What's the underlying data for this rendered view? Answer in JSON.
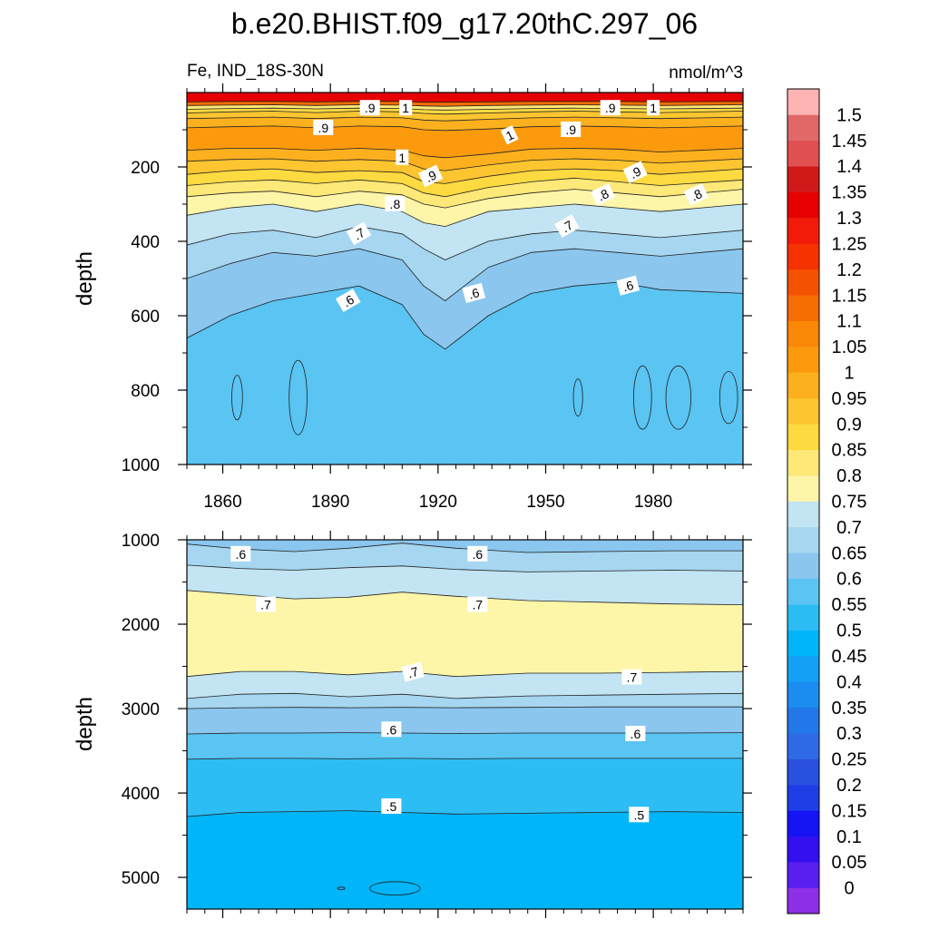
{
  "chart_data": [
    {
      "type": "contour",
      "panel": "upper",
      "title": "b.e20.BHIST.f09_g17.20thC.297_06",
      "left_subtitle": "Fe, IND_18S-30N",
      "right_subtitle": "nmol/m^3",
      "xlabel": "",
      "ylabel": "depth",
      "x_range": [
        1850,
        2005
      ],
      "y_range": [
        0,
        1000
      ],
      "y_inverted": true,
      "x_ticks": [
        "1860",
        "1890",
        "1920",
        "1950",
        "1980"
      ],
      "x_tick_values": [
        1860,
        1890,
        1920,
        1950,
        1980
      ],
      "y_ticks": [
        "200",
        "400",
        "600",
        "800",
        "1000"
      ],
      "y_tick_values": [
        200,
        400,
        600,
        800,
        1000
      ],
      "isolines": [
        {
          "level": 0.6,
          "depth": [
            660,
            600,
            560,
            540,
            520,
            570,
            650,
            690,
            600,
            540,
            520,
            510,
            530,
            540
          ]
        },
        {
          "level": 0.65,
          "depth": [
            500,
            460,
            430,
            440,
            420,
            450,
            520,
            560,
            470,
            430,
            420,
            430,
            440,
            420
          ]
        },
        {
          "level": 0.7,
          "depth": [
            410,
            380,
            370,
            390,
            360,
            380,
            420,
            450,
            400,
            380,
            370,
            380,
            390,
            370
          ]
        },
        {
          "level": 0.75,
          "depth": [
            330,
            310,
            300,
            320,
            300,
            320,
            350,
            360,
            320,
            310,
            300,
            310,
            320,
            300
          ]
        },
        {
          "level": 0.8,
          "depth": [
            280,
            270,
            265,
            280,
            265,
            275,
            300,
            310,
            285,
            270,
            260,
            270,
            280,
            260
          ]
        },
        {
          "level": 0.85,
          "depth": [
            250,
            240,
            235,
            245,
            235,
            245,
            270,
            280,
            255,
            240,
            230,
            240,
            250,
            235
          ]
        },
        {
          "level": 0.9,
          "depth": [
            220,
            210,
            205,
            215,
            210,
            215,
            240,
            245,
            225,
            210,
            205,
            210,
            220,
            205
          ]
        },
        {
          "level": 0.95,
          "depth": [
            185,
            180,
            178,
            185,
            180,
            185,
            205,
            210,
            195,
            182,
            178,
            182,
            190,
            178
          ]
        },
        {
          "level": 1.0,
          "depth": [
            155,
            150,
            150,
            155,
            150,
            155,
            170,
            175,
            165,
            152,
            150,
            152,
            160,
            150
          ]
        },
        {
          "level": 0.95,
          "depth": [
            95,
            92,
            90,
            95,
            90,
            92,
            100,
            102,
            98,
            92,
            90,
            92,
            95,
            90
          ]
        },
        {
          "level": 0.9,
          "depth": [
            70,
            68,
            66,
            70,
            66,
            68,
            74,
            76,
            72,
            68,
            66,
            68,
            70,
            66
          ]
        },
        {
          "level": 0.85,
          "depth": [
            55,
            52,
            50,
            54,
            50,
            52,
            56,
            58,
            55,
            52,
            50,
            52,
            54,
            50
          ]
        },
        {
          "level": 0.8,
          "depth": [
            45,
            43,
            42,
            44,
            42,
            43,
            46,
            47,
            45,
            43,
            42,
            43,
            44,
            42
          ]
        },
        {
          "level": 1.1,
          "depth": [
            35,
            34,
            33,
            35,
            33,
            34,
            36,
            37,
            35,
            34,
            33,
            34,
            35,
            33
          ]
        },
        {
          "level": 1.3,
          "depth": [
            25,
            24,
            24,
            25,
            24,
            24,
            26,
            26,
            25,
            24,
            24,
            24,
            25,
            24
          ]
        }
      ],
      "isoline_years": [
        1850,
        1862,
        1874,
        1886,
        1898,
        1910,
        1916,
        1922,
        1934,
        1946,
        1958,
        1970,
        1982,
        2005
      ],
      "blobs": [
        {
          "level": 0.55,
          "year": 1864,
          "depth": 820,
          "half_width_years": 1.5,
          "half_height": 60
        },
        {
          "level": 0.55,
          "year": 1881,
          "depth": 820,
          "half_width_years": 2.5,
          "half_height": 100
        },
        {
          "level": 0.55,
          "year": 1959,
          "depth": 820,
          "half_width_years": 1.3,
          "half_height": 50
        },
        {
          "level": 0.55,
          "year": 1977,
          "depth": 820,
          "half_width_years": 2.5,
          "half_height": 85
        },
        {
          "level": 0.55,
          "year": 1987,
          "depth": 820,
          "half_width_years": 3.5,
          "half_height": 85
        },
        {
          "level": 0.55,
          "year": 2001,
          "depth": 820,
          "half_width_years": 2.5,
          "half_height": 70
        }
      ],
      "contour_labels": [
        {
          "text": ".9",
          "year": 1901,
          "depth": 42,
          "angle": 0
        },
        {
          "text": "1",
          "year": 1911,
          "depth": 42,
          "angle": 0
        },
        {
          "text": ".9",
          "year": 1968,
          "depth": 42,
          "angle": 0
        },
        {
          "text": "1",
          "year": 1980,
          "depth": 42,
          "angle": 0
        },
        {
          "text": ".9",
          "year": 1888,
          "depth": 95,
          "angle": 0
        },
        {
          "text": "1",
          "year": 1940,
          "depth": 115,
          "angle": -25
        },
        {
          "text": ".9",
          "year": 1957,
          "depth": 100,
          "angle": 0
        },
        {
          "text": "1",
          "year": 1910,
          "depth": 175,
          "angle": 0
        },
        {
          "text": ".9",
          "year": 1918,
          "depth": 225,
          "angle": -25
        },
        {
          "text": ".9",
          "year": 1975,
          "depth": 215,
          "angle": -25
        },
        {
          "text": ".8",
          "year": 1908,
          "depth": 300,
          "angle": 0
        },
        {
          "text": ".8",
          "year": 1966,
          "depth": 275,
          "angle": -25
        },
        {
          "text": ".8",
          "year": 1992,
          "depth": 275,
          "angle": -25
        },
        {
          "text": ".7",
          "year": 1898,
          "depth": 380,
          "angle": -30
        },
        {
          "text": ".7",
          "year": 1956,
          "depth": 360,
          "angle": -30
        },
        {
          "text": ".6",
          "year": 1895,
          "depth": 560,
          "angle": -30
        },
        {
          "text": ".6",
          "year": 1930,
          "depth": 540,
          "angle": -15
        },
        {
          "text": ".6",
          "year": 1973,
          "depth": 520,
          "angle": -15
        }
      ]
    },
    {
      "type": "contour",
      "panel": "lower",
      "xlabel": "",
      "ylabel": "depth",
      "x_range": [
        1850,
        2005
      ],
      "y_range": [
        1000,
        5375
      ],
      "y_inverted": true,
      "y_ticks": [
        "1000",
        "2000",
        "3000",
        "4000",
        "5000"
      ],
      "y_tick_values": [
        1000,
        2000,
        3000,
        4000,
        5000
      ],
      "isolines": [
        {
          "level": 0.6,
          "depth": [
            1050,
            1110,
            1140,
            1100,
            1040,
            1100,
            1150,
            1140,
            1130,
            1130
          ]
        },
        {
          "level": 0.65,
          "depth": [
            1300,
            1340,
            1360,
            1330,
            1310,
            1350,
            1380,
            1370,
            1360,
            1370
          ]
        },
        {
          "level": 0.7,
          "depth": [
            1600,
            1650,
            1700,
            1680,
            1620,
            1670,
            1720,
            1740,
            1760,
            1770
          ]
        },
        {
          "level": 0.75,
          "depth": [
            2620,
            2560,
            2560,
            2600,
            2560,
            2620,
            2580,
            2580,
            2570,
            2560
          ]
        },
        {
          "level": 0.7,
          "depth": [
            2880,
            2830,
            2820,
            2860,
            2830,
            2880,
            2850,
            2840,
            2830,
            2820
          ]
        },
        {
          "level": 0.65,
          "depth": [
            3000,
            2990,
            2985,
            2990,
            2985,
            2990,
            2985,
            2980,
            2980,
            2980
          ]
        },
        {
          "level": 0.6,
          "depth": [
            3300,
            3290,
            3290,
            3285,
            3290,
            3295,
            3290,
            3290,
            3290,
            3285
          ]
        },
        {
          "level": 0.55,
          "depth": [
            3600,
            3590,
            3590,
            3595,
            3590,
            3595,
            3590,
            3590,
            3590,
            3590
          ]
        },
        {
          "level": 0.5,
          "depth": [
            4280,
            4230,
            4220,
            4210,
            4230,
            4250,
            4240,
            4230,
            4220,
            4230
          ]
        }
      ],
      "isoline_years": [
        1850,
        1865,
        1880,
        1895,
        1910,
        1925,
        1945,
        1965,
        1985,
        2005
      ],
      "blobs": [
        {
          "level": 0.45,
          "year": 1908,
          "depth": 5130,
          "half_width_years": 7,
          "half_height": 80
        },
        {
          "level": 0.45,
          "year": 1893,
          "depth": 5130,
          "half_width_years": 1,
          "half_height": 15
        }
      ],
      "contour_labels": [
        {
          "text": ".6",
          "year": 1865,
          "depth": 1170,
          "angle": 0
        },
        {
          "text": ".6",
          "year": 1931,
          "depth": 1170,
          "angle": 0
        },
        {
          "text": ".7",
          "year": 1872,
          "depth": 1770,
          "angle": 0
        },
        {
          "text": ".7",
          "year": 1931,
          "depth": 1770,
          "angle": 0
        },
        {
          "text": ".7",
          "year": 1913,
          "depth": 2570,
          "angle": -15
        },
        {
          "text": ".7",
          "year": 1974,
          "depth": 2630,
          "angle": 0
        },
        {
          "text": ".6",
          "year": 1907,
          "depth": 3250,
          "angle": 0
        },
        {
          "text": ".6",
          "year": 1975,
          "depth": 3300,
          "angle": 0
        },
        {
          "text": ".5",
          "year": 1907,
          "depth": 4160,
          "angle": 0
        },
        {
          "text": ".5",
          "year": 1976,
          "depth": 4260,
          "angle": 0
        }
      ]
    }
  ],
  "colorbar": {
    "levels": [
      0,
      0.05,
      0.1,
      0.15,
      0.2,
      0.25,
      0.3,
      0.35,
      0.4,
      0.45,
      0.5,
      0.55,
      0.6,
      0.65,
      0.7,
      0.75,
      0.8,
      0.85,
      0.9,
      0.95,
      1,
      1.05,
      1.1,
      1.15,
      1.2,
      1.25,
      1.3,
      1.35,
      1.4,
      1.45,
      1.5
    ],
    "labels": [
      "0",
      "0.05",
      "0.1",
      "0.15",
      "0.2",
      "0.25",
      "0.3",
      "0.35",
      "0.4",
      "0.45",
      "0.5",
      "0.55",
      "0.6",
      "0.65",
      "0.7",
      "0.75",
      "0.8",
      "0.85",
      "0.9",
      "0.95",
      "1",
      "1.05",
      "1.1",
      "1.15",
      "1.2",
      "1.25",
      "1.3",
      "1.35",
      "1.4",
      "1.45",
      "1.5"
    ],
    "colors": [
      "#8c2fe6",
      "#5a1ef0",
      "#3410f0",
      "#1414f5",
      "#1f3de6",
      "#2a50e0",
      "#2e6ae6",
      "#2278e8",
      "#1b8cf0",
      "#14a0f5",
      "#00b5f8",
      "#2dbdf5",
      "#5ac4f2",
      "#8ac6ee",
      "#a6d6f0",
      "#c2e4f3",
      "#fdf6a8",
      "#fde878",
      "#fdda40",
      "#fdc530",
      "#fcb01e",
      "#fc9a0e",
      "#fa8705",
      "#f56c00",
      "#f55200",
      "#f53200",
      "#f21b0a",
      "#e60000",
      "#d01a1a",
      "#e05050",
      "#e06868",
      "#ffb4b4"
    ]
  }
}
